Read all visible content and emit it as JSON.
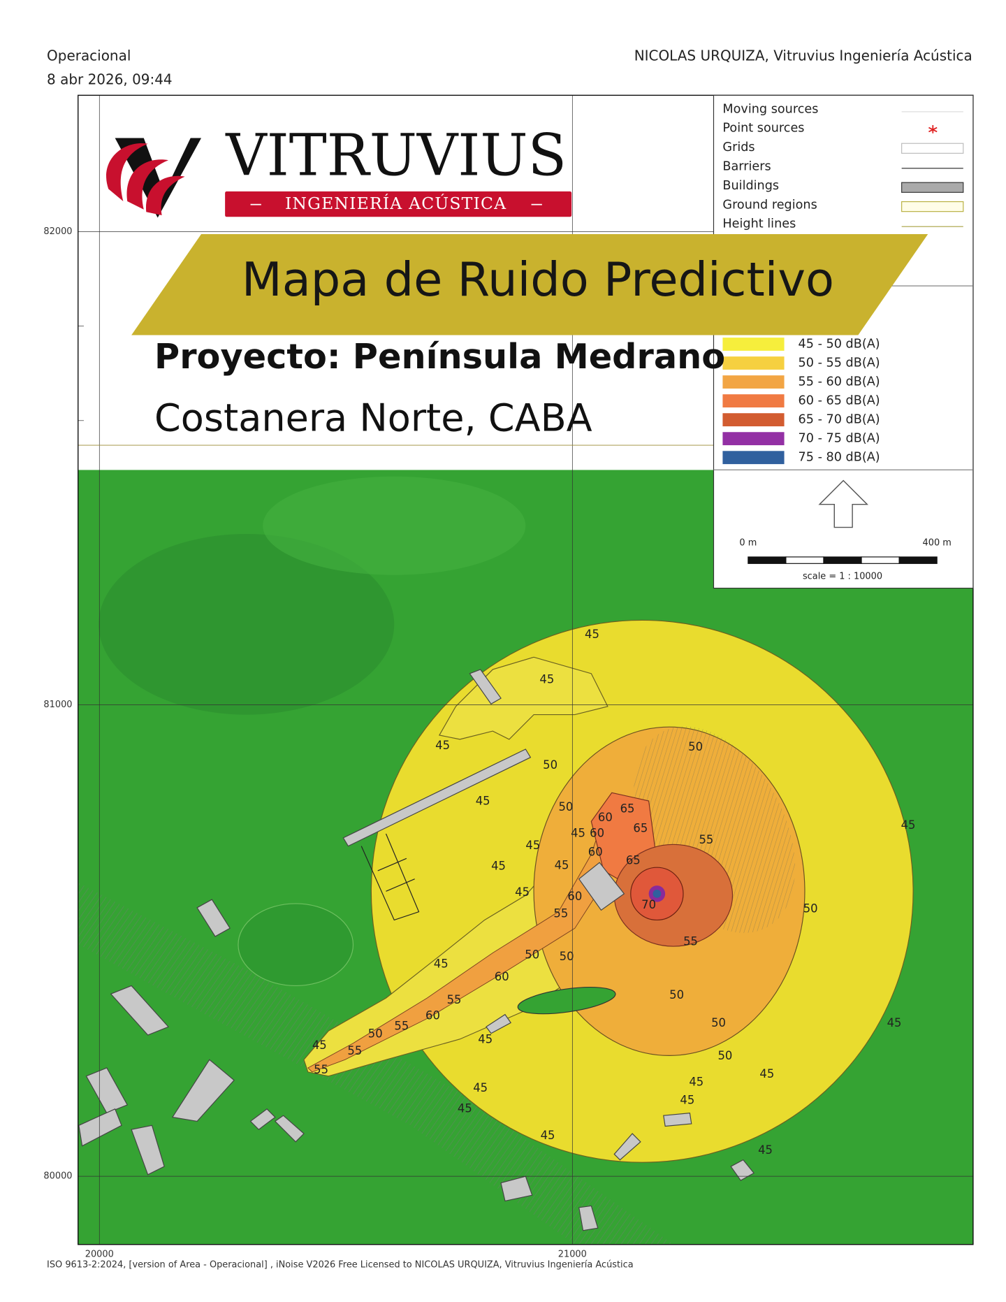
{
  "header": {
    "status": "Operacional",
    "datetime": "8 abr 2026, 09:44",
    "author": "NICOLAS URQUIZA, Vitruvius Ingeniería Acústica"
  },
  "logo": {
    "name": "VITRUVIUS",
    "tagline": "INGENIERÍA ACÚSTICA"
  },
  "banner": {
    "title": "Mapa de Ruido Predictivo",
    "project": "Proyecto: Península Medrano",
    "location": "Costanera Norte, CABA"
  },
  "legend": {
    "symbols": [
      "Moving sources",
      "Point sources",
      "Grids",
      "Barriers",
      "Buildings",
      "Ground regions",
      "Height lines"
    ],
    "levels": [
      {
        "label": "45 - 50 dB(A)",
        "color": "#f6ee3c"
      },
      {
        "label": "50 - 55 dB(A)",
        "color": "#f6d040"
      },
      {
        "label": "55 - 60 dB(A)",
        "color": "#f2a544"
      },
      {
        "label": "60 - 65 dB(A)",
        "color": "#f07a42"
      },
      {
        "label": "65 - 70 dB(A)",
        "color": "#d25c30"
      },
      {
        "label": "70 - 75 dB(A)",
        "color": "#9330a4"
      },
      {
        "label": "75 - 80 dB(A)",
        "color": "#30609e"
      }
    ]
  },
  "scale": {
    "start": "0 m",
    "end": "400 m",
    "ratio": "scale = 1 : 10000"
  },
  "axes": {
    "y": [
      "82000",
      "81000",
      "80000"
    ],
    "x": [
      "20000",
      "21000"
    ]
  },
  "contour_labels": [
    45,
    45,
    50,
    45,
    50,
    45,
    50,
    65,
    60,
    65,
    45,
    60,
    55,
    45,
    45,
    45,
    45,
    60,
    65,
    45,
    60,
    70,
    50,
    55,
    55,
    45,
    50,
    50,
    60,
    55,
    50,
    60,
    50,
    45,
    55,
    50,
    45,
    55,
    55,
    45,
    50,
    45,
    45,
    45,
    45,
    45,
    45,
    45
  ],
  "footer": "ISO 9613-2:2024, [version of Area - Operacional] , iNoise V2026 Free Licensed to NICOLAS URQUIZA, Vitruvius Ingeniería Acústica"
}
